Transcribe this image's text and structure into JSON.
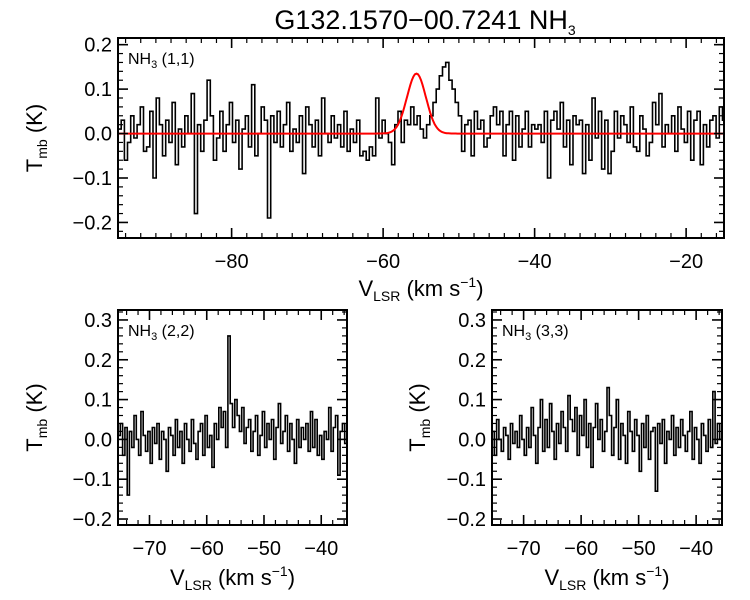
{
  "figure": {
    "title": {
      "main": "G132.1570−00.7241 NH",
      "sub": "3"
    }
  },
  "chart_data": [
    {
      "type": "line",
      "label": {
        "main": "NH",
        "sub": "3",
        "rest": " (1,1)"
      },
      "xlabel": {
        "main": "V",
        "sub": "LSR",
        "rest": " (km s",
        "sup": "−1",
        "end": ")"
      },
      "ylabel": {
        "main": "T",
        "sub": "mb",
        "rest": " (K)"
      },
      "xlim": [
        -95,
        -15
      ],
      "ylim": [
        -0.235,
        0.215
      ],
      "xticks": [
        -80,
        -60,
        -40,
        -20
      ],
      "xtick_labels": [
        "−80",
        "−60",
        "−40",
        "−20"
      ],
      "yticks": [
        -0.2,
        -0.1,
        0.0,
        0.1,
        0.2
      ],
      "ytick_labels": [
        "−0.2",
        "−0.1",
        "0.0",
        "0.1",
        "0.2"
      ],
      "show_xlabel": true,
      "series": [
        {
          "style": "step",
          "color": "#000000",
          "x_start": -95,
          "x_step": 0.42,
          "values": [
            0.01,
            0.03,
            -0.06,
            -0.02,
            0.04,
            -0.01,
            0.02,
            0.06,
            -0.04,
            -0.03,
            0.05,
            -0.1,
            0.08,
            0.02,
            -0.05,
            0.03,
            -0.02,
            0.07,
            -0.07,
            0.01,
            -0.03,
            0.04,
            0.0,
            0.09,
            -0.18,
            0.02,
            -0.04,
            0.03,
            0.12,
            0.04,
            -0.06,
            -0.01,
            0.05,
            -0.04,
            0.02,
            0.07,
            -0.02,
            0.03,
            -0.08,
            0.01,
            0.04,
            -0.03,
            0.11,
            -0.05,
            0.0,
            0.06,
            0.03,
            -0.19,
            0.04,
            -0.02,
            0.05,
            -0.03,
            0.02,
            0.07,
            -0.04,
            0.01,
            -0.02,
            0.04,
            -0.09,
            0.06,
            0.02,
            -0.03,
            0.03,
            -0.05,
            0.08,
            0.0,
            -0.02,
            0.04,
            -0.01,
            0.02,
            -0.03,
            0.05,
            -0.04,
            0.01,
            -0.02,
            0.03,
            -0.05,
            -0.04,
            -0.06,
            -0.03,
            -0.05,
            0.08,
            -0.01,
            0.03,
            0.0,
            -0.02,
            -0.07,
            0.02,
            0.05,
            -0.02,
            0.03,
            0.02,
            0.06,
            0.02,
            0.04,
            0.01,
            -0.01,
            0.02,
            0.04,
            0.07,
            0.1,
            0.13,
            0.15,
            0.16,
            0.12,
            0.1,
            0.07,
            0.04,
            -0.04,
            0.02,
            0.03,
            -0.05,
            0.05,
            0.01,
            0.03,
            -0.03,
            -0.01,
            0.04,
            0.06,
            0.02,
            0.05,
            -0.05,
            0.02,
            0.05,
            -0.06,
            0.04,
            -0.03,
            0.01,
            0.05,
            -0.03,
            0.02,
            0.01,
            0.02,
            -0.02,
            0.05,
            -0.1,
            0.03,
            0.05,
            0.01,
            0.07,
            -0.03,
            0.03,
            -0.07,
            0.04,
            0.02,
            0.03,
            -0.09,
            0.02,
            -0.06,
            0.08,
            -0.01,
            0.05,
            -0.08,
            0.03,
            -0.09,
            -0.04,
            0.05,
            -0.01,
            0.04,
            0.02,
            -0.02,
            0.06,
            -0.03,
            -0.04,
            0.04,
            0.01,
            -0.05,
            -0.02,
            0.07,
            0.02,
            0.09,
            -0.03,
            0.02,
            0.0,
            0.04,
            -0.04,
            0.06,
            0.01,
            -0.02,
            0.05,
            -0.06,
            0.03,
            0.05,
            -0.07,
            0.02,
            -0.03,
            0.03,
            0.04,
            -0.01,
            0.06,
            0.03,
            -0.11,
            0.12,
            0.03,
            -0.02,
            0.05
          ]
        },
        {
          "style": "line",
          "color": "#ff0000",
          "model": "gaussian",
          "amplitude": 0.135,
          "center": -55.6,
          "sigma": 1.25,
          "x_range": [
            -95,
            -15
          ]
        }
      ]
    },
    {
      "type": "line",
      "label": {
        "main": "NH",
        "sub": "3",
        "rest": " (2,2)"
      },
      "xlabel": {
        "main": "V",
        "sub": "LSR",
        "rest": " (km s",
        "sup": "−1",
        "end": ")"
      },
      "ylabel": {
        "main": "T",
        "sub": "mb",
        "rest": " (K)"
      },
      "xlim": [
        -75.5,
        -35.5
      ],
      "ylim": [
        -0.215,
        0.325
      ],
      "xticks": [
        -70,
        -60,
        -50,
        -40
      ],
      "xtick_labels": [
        "−70",
        "−60",
        "−50",
        "−40"
      ],
      "yticks": [
        -0.2,
        -0.1,
        0.0,
        0.1,
        0.2,
        0.3
      ],
      "ytick_labels": [
        "−0.2",
        "−0.1",
        "0.0",
        "0.1",
        "0.2",
        "0.3"
      ],
      "show_xlabel": true,
      "series": [
        {
          "style": "step",
          "color": "#000000",
          "x_start": -75.5,
          "x_step": 0.4,
          "values": [
            0.01,
            0.04,
            -0.04,
            0.03,
            -0.14,
            0.02,
            -0.02,
            0.06,
            0.0,
            -0.04,
            0.07,
            0.01,
            -0.03,
            0.02,
            -0.06,
            0.03,
            -0.01,
            0.04,
            -0.05,
            0.02,
            0.0,
            -0.08,
            0.03,
            0.01,
            -0.04,
            0.05,
            -0.02,
            0.02,
            -0.06,
            0.04,
            0.0,
            -0.03,
            0.05,
            -0.01,
            -0.05,
            0.02,
            0.04,
            -0.04,
            0.06,
            -0.02,
            0.01,
            -0.07,
            0.04,
            0.0,
            0.08,
            0.03,
            0.07,
            -0.02,
            0.26,
            0.09,
            0.03,
            0.1,
            0.06,
            0.02,
            0.08,
            -0.01,
            0.03,
            0.05,
            -0.03,
            0.02,
            0.06,
            -0.04,
            0.01,
            0.07,
            -0.02,
            0.04,
            0.0,
            0.05,
            -0.05,
            0.03,
            0.09,
            -0.01,
            0.02,
            0.06,
            -0.03,
            0.04,
            0.0,
            -0.06,
            0.05,
            -0.02,
            0.03,
            0.0,
            0.04,
            -0.03,
            0.07,
            -0.02,
            0.05,
            -0.04,
            0.01,
            -0.05,
            0.02,
            0.0,
            0.08,
            -0.03,
            0.03,
            0.06,
            -0.09,
            0.02,
            0.04,
            -0.01,
            -0.1,
            0.03
          ]
        }
      ]
    },
    {
      "type": "line",
      "label": {
        "main": "NH",
        "sub": "3",
        "rest": " (3,3)"
      },
      "xlabel": {
        "main": "V",
        "sub": "LSR",
        "rest": " (km s",
        "sup": "−1",
        "end": ")"
      },
      "ylabel": {
        "main": "T",
        "sub": "mb",
        "rest": " (K)"
      },
      "xlim": [
        -75.5,
        -35.5
      ],
      "ylim": [
        -0.215,
        0.325
      ],
      "xticks": [
        -70,
        -60,
        -50,
        -40
      ],
      "xtick_labels": [
        "−70",
        "−60",
        "−50",
        "−40"
      ],
      "yticks": [
        -0.2,
        -0.1,
        0.0,
        0.1,
        0.2,
        0.3
      ],
      "ytick_labels": [
        "−0.2",
        "−0.1",
        "0.0",
        "0.1",
        "0.2",
        "0.3"
      ],
      "show_xlabel": true,
      "series": [
        {
          "style": "step",
          "color": "#000000",
          "x_start": -75.5,
          "x_step": 0.4,
          "values": [
            0.02,
            -0.04,
            0.05,
            0.0,
            -0.03,
            0.03,
            0.01,
            -0.05,
            0.04,
            -0.01,
            0.02,
            -0.02,
            0.06,
            0.0,
            -0.04,
            0.03,
            -0.02,
            0.08,
            0.01,
            -0.06,
            0.03,
            0.1,
            -0.03,
            0.05,
            -0.02,
            0.09,
            0.02,
            -0.05,
            0.04,
            -0.01,
            0.07,
            0.03,
            -0.03,
            0.11,
            0.05,
            0.02,
            0.08,
            -0.04,
            0.06,
            0.01,
            0.1,
            -0.02,
            0.04,
            -0.07,
            0.03,
            0.09,
            0.0,
            0.05,
            -0.03,
            0.02,
            0.13,
            0.06,
            -0.04,
            0.03,
            0.1,
            -0.05,
            0.04,
            0.01,
            -0.06,
            0.07,
            0.02,
            -0.03,
            0.05,
            0.01,
            -0.08,
            0.04,
            -0.02,
            0.06,
            -0.05,
            0.02,
            0.03,
            -0.13,
            0.04,
            -0.01,
            0.05,
            -0.06,
            0.02,
            0.0,
            0.06,
            -0.04,
            0.03,
            -0.02,
            0.05,
            0.01,
            -0.03,
            0.02,
            0.07,
            -0.05,
            0.03,
            0.0,
            -0.06,
            0.04,
            0.01,
            -0.03,
            0.05,
            -0.02,
            0.12,
            -0.01,
            0.04,
            0.0
          ]
        }
      ]
    }
  ]
}
